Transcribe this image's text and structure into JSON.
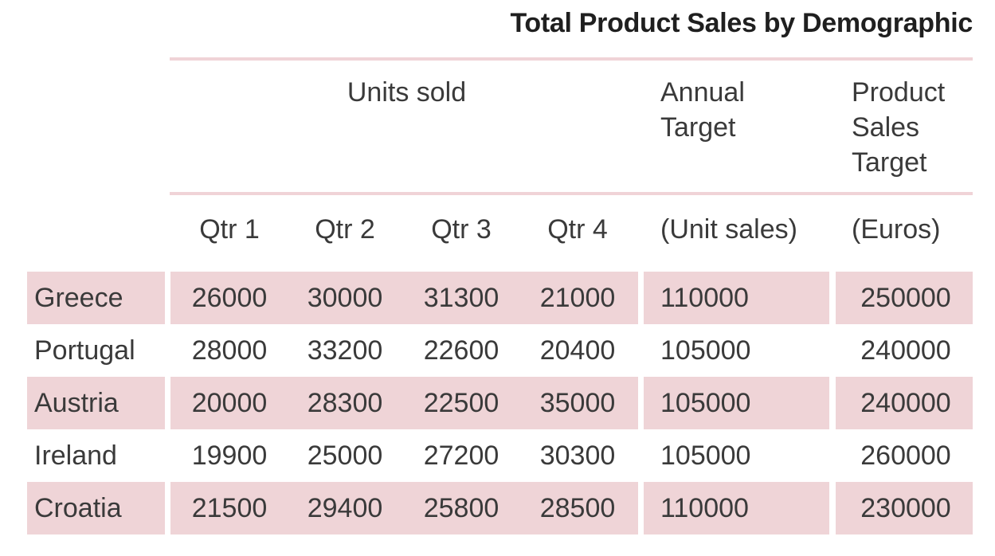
{
  "chart_data": {
    "type": "table",
    "title": "Total Product Sales by Demographic",
    "group_headers": {
      "units_sold": "Units sold",
      "annual_target": "Annual Target",
      "annual_target_lines": [
        "Annual",
        "Target"
      ],
      "sales_target": "Product Sales Target",
      "sales_target_lines": [
        "Product",
        "Sales",
        "Target"
      ]
    },
    "columns": [
      "Qtr 1",
      "Qtr 2",
      "Qtr 3",
      "Qtr 4",
      "(Unit sales)",
      "(Euros)"
    ],
    "rows": [
      {
        "label": "Greece",
        "values": [
          26000,
          30000,
          31300,
          21000,
          110000,
          250000
        ],
        "highlight": true
      },
      {
        "label": "Portugal",
        "values": [
          28000,
          33200,
          22600,
          20400,
          105000,
          240000
        ],
        "highlight": false
      },
      {
        "label": "Austria",
        "values": [
          20000,
          28300,
          22500,
          35000,
          105000,
          240000
        ],
        "highlight": true
      },
      {
        "label": "Ireland",
        "values": [
          19900,
          25000,
          27200,
          30300,
          105000,
          260000
        ],
        "highlight": false
      },
      {
        "label": "Croatia",
        "values": [
          21500,
          29400,
          25800,
          28500,
          110000,
          230000
        ],
        "highlight": true
      }
    ],
    "colors": {
      "highlight_fill": "#efd4d7",
      "rule": "#f0d3d7",
      "text": "#3a3a3a",
      "title": "#1f1f1f"
    }
  }
}
